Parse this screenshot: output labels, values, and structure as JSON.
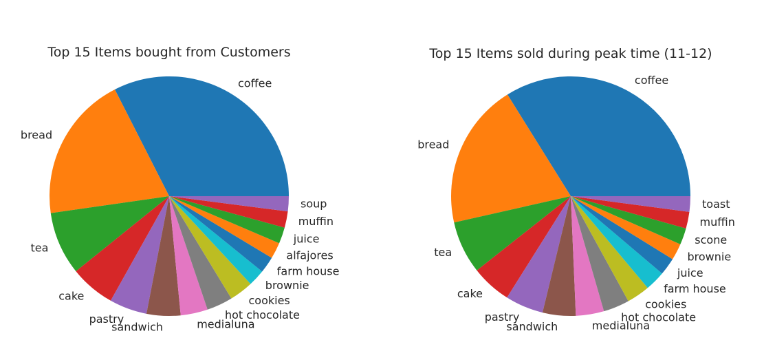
{
  "chart_data": [
    {
      "type": "pie",
      "title": "Top 15 Items bought from Customers",
      "start_angle": 0,
      "direction": "counterclockwise",
      "slices": [
        {
          "label": "coffee",
          "value": 5471,
          "color": "#1f77b4"
        },
        {
          "label": "bread",
          "value": 3325,
          "color": "#ff7f0e"
        },
        {
          "label": "tea",
          "value": 1435,
          "color": "#2ca02c"
        },
        {
          "label": "cake",
          "value": 1025,
          "color": "#d62728"
        },
        {
          "label": "pastry",
          "value": 856,
          "color": "#9467bd"
        },
        {
          "label": "sandwich",
          "value": 771,
          "color": "#8c564b"
        },
        {
          "label": "medialuna",
          "value": 616,
          "color": "#e377c2"
        },
        {
          "label": "hot chocolate",
          "value": 590,
          "color": "#7f7f7f"
        },
        {
          "label": "cookies",
          "value": 540,
          "color": "#bcbd22"
        },
        {
          "label": "brownie",
          "value": 379,
          "color": "#17becf"
        },
        {
          "label": "farm house",
          "value": 374,
          "color": "#1f77b4"
        },
        {
          "label": "alfajores",
          "value": 369,
          "color": "#ff7f0e"
        },
        {
          "label": "juice",
          "value": 369,
          "color": "#2ca02c"
        },
        {
          "label": "muffin",
          "value": 370,
          "color": "#d62728"
        },
        {
          "label": "soup",
          "value": 342,
          "color": "#9467bd"
        }
      ]
    },
    {
      "type": "pie",
      "title": "Top 15 Items sold during peak time (11-12)",
      "start_angle": 0,
      "direction": "counterclockwise",
      "slices": [
        {
          "label": "coffee",
          "value": 1000,
          "color": "#1f77b4"
        },
        {
          "label": "bread",
          "value": 580,
          "color": "#ff7f0e"
        },
        {
          "label": "tea",
          "value": 210,
          "color": "#2ca02c"
        },
        {
          "label": "cake",
          "value": 160,
          "color": "#d62728"
        },
        {
          "label": "pastry",
          "value": 152,
          "color": "#9467bd"
        },
        {
          "label": "sandwich",
          "value": 132,
          "color": "#8c564b"
        },
        {
          "label": "medialuna",
          "value": 112,
          "color": "#e377c2"
        },
        {
          "label": "hot chocolate",
          "value": 104,
          "color": "#7f7f7f"
        },
        {
          "label": "cookies",
          "value": 92,
          "color": "#bcbd22"
        },
        {
          "label": "farm house",
          "value": 80,
          "color": "#17becf"
        },
        {
          "label": "juice",
          "value": 70,
          "color": "#1f77b4"
        },
        {
          "label": "brownie",
          "value": 66,
          "color": "#ff7f0e"
        },
        {
          "label": "scone",
          "value": 66,
          "color": "#2ca02c"
        },
        {
          "label": "muffin",
          "value": 66,
          "color": "#d62728"
        },
        {
          "label": "toast",
          "value": 62,
          "color": "#9467bd"
        }
      ]
    }
  ]
}
